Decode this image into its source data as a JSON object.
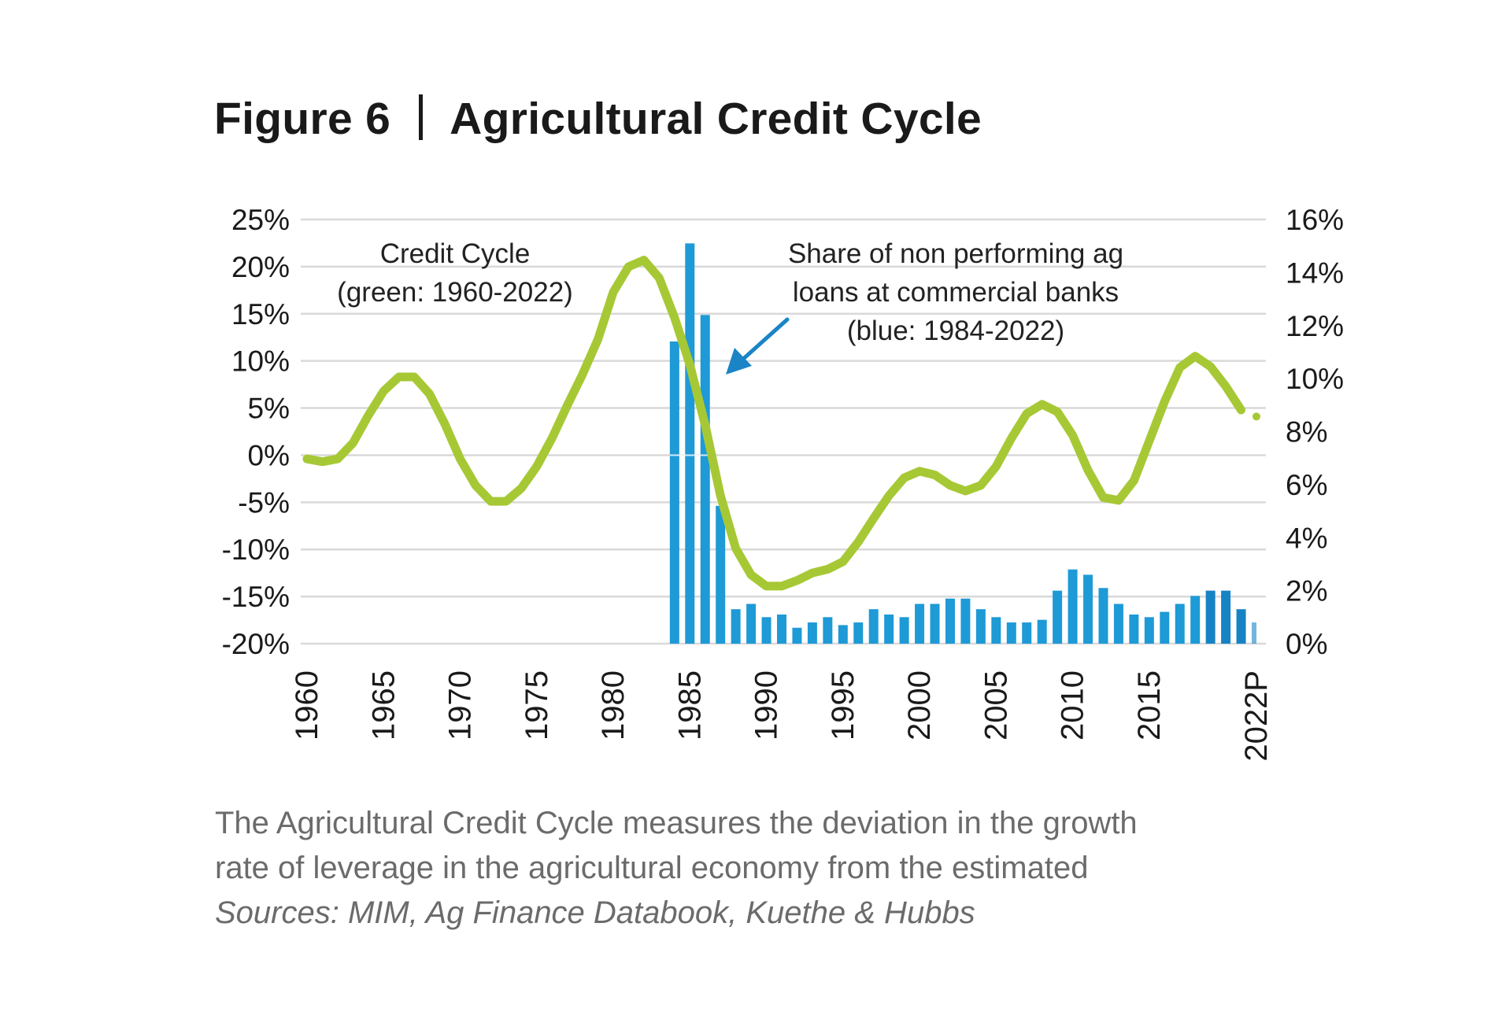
{
  "title": {
    "figure_label": "Figure 6",
    "text": "Agricultural Credit Cycle"
  },
  "chart_data": {
    "type": "bar+line",
    "title": "Agricultural Credit Cycle",
    "x": [
      1960,
      1961,
      1962,
      1963,
      1964,
      1965,
      1966,
      1967,
      1968,
      1969,
      1970,
      1971,
      1972,
      1973,
      1974,
      1975,
      1976,
      1977,
      1978,
      1979,
      1980,
      1981,
      1982,
      1983,
      1984,
      1985,
      1986,
      1987,
      1988,
      1989,
      1990,
      1991,
      1992,
      1993,
      1994,
      1995,
      1996,
      1997,
      1998,
      1999,
      2000,
      2001,
      2002,
      2003,
      2004,
      2005,
      2006,
      2007,
      2008,
      2009,
      2010,
      2011,
      2012,
      2013,
      2014,
      2015,
      2016,
      2017,
      2018,
      2019,
      2020,
      2021,
      2022
    ],
    "x_tick_labels": [
      "1960",
      "1965",
      "1970",
      "1975",
      "1980",
      "1985",
      "1990",
      "1995",
      "2000",
      "2005",
      "2010",
      "2015",
      "2022P"
    ],
    "x_tick_years": [
      1960,
      1965,
      1970,
      1975,
      1980,
      1985,
      1990,
      1995,
      2000,
      2005,
      2010,
      2015,
      2022
    ],
    "left_axis": {
      "ylim": [
        -20,
        25
      ],
      "ticks": [
        25,
        20,
        15,
        10,
        5,
        0,
        -5,
        -10,
        -15,
        -20
      ],
      "tick_labels": [
        "25%",
        "20%",
        "15%",
        "10%",
        "5%",
        "0%",
        "-5%",
        "-10%",
        "-15%",
        "-20%"
      ]
    },
    "right_axis": {
      "ylim": [
        0,
        16
      ],
      "ticks": [
        16,
        14,
        12,
        10,
        8,
        6,
        4,
        2,
        0
      ],
      "tick_labels": [
        "16%",
        "14%",
        "12%",
        "10%",
        "8%",
        "6%",
        "4%",
        "2%",
        "0%"
      ]
    },
    "grid": true,
    "series": [
      {
        "name": "Credit Cycle",
        "type": "line",
        "axis": "left",
        "color": "#a7c835",
        "years": [
          1960,
          2022
        ],
        "values": [
          -0.4,
          -0.7,
          -0.4,
          1.3,
          4.2,
          6.8,
          8.3,
          8.3,
          6.5,
          3.3,
          -0.4,
          -3.2,
          -4.9,
          -4.9,
          -3.5,
          -1.2,
          1.8,
          5.3,
          8.6,
          12.3,
          17.3,
          20.0,
          20.7,
          18.8,
          14.6,
          9.6,
          3.2,
          -4.3,
          -9.9,
          -12.7,
          -13.9,
          -13.9,
          -13.3,
          -12.5,
          -12.1,
          -11.3,
          -9.2,
          -6.7,
          -4.3,
          -2.4,
          -1.7,
          -2.1,
          -3.2,
          -3.8,
          -3.2,
          -1.2,
          1.8,
          4.4,
          5.4,
          4.6,
          2.1,
          -1.6,
          -4.5,
          -4.8,
          -2.7,
          1.5,
          5.7,
          9.3,
          10.5,
          9.4,
          7.3,
          4.8,
          4.1
        ],
        "last_point_projected": true
      },
      {
        "name": "Share of non performing ag loans at commercial banks",
        "type": "bar",
        "axis": "right",
        "color": "#1e9ad6",
        "years": [
          1984,
          2022
        ],
        "values": [
          11.4,
          15.1,
          12.4,
          5.2,
          1.3,
          1.5,
          1.0,
          1.1,
          0.6,
          0.8,
          1.0,
          0.7,
          0.8,
          1.3,
          1.1,
          1.0,
          1.5,
          1.5,
          1.7,
          1.7,
          1.3,
          1.0,
          0.8,
          0.8,
          0.9,
          2.0,
          2.8,
          2.6,
          2.1,
          1.5,
          1.1,
          1.0,
          1.2,
          1.5,
          1.8,
          2.0,
          2.0,
          1.3,
          0.8
        ],
        "last_bar_projected": true
      }
    ],
    "annotations": {
      "green_label": [
        "Credit Cycle",
        "(green: 1960-2022)"
      ],
      "blue_label": [
        "Share of non performing ag",
        "loans at commercial banks",
        "(blue: 1984-2022)"
      ],
      "arrow_color": "#1a84c7"
    }
  },
  "caption": {
    "line1": "The Agricultural Credit Cycle measures the deviation in the growth",
    "line2": "rate of leverage in the agricultural economy from the estimated",
    "sources": "Sources: MIM, Ag Finance Databook, Kuethe & Hubbs"
  },
  "colors": {
    "line": "#a7c835",
    "bar": "#1e9ad6",
    "bar_dark": "#1783c4",
    "grid": "#d9d9d9",
    "text": "#1a1a1a",
    "caption": "#6b6b6b"
  }
}
